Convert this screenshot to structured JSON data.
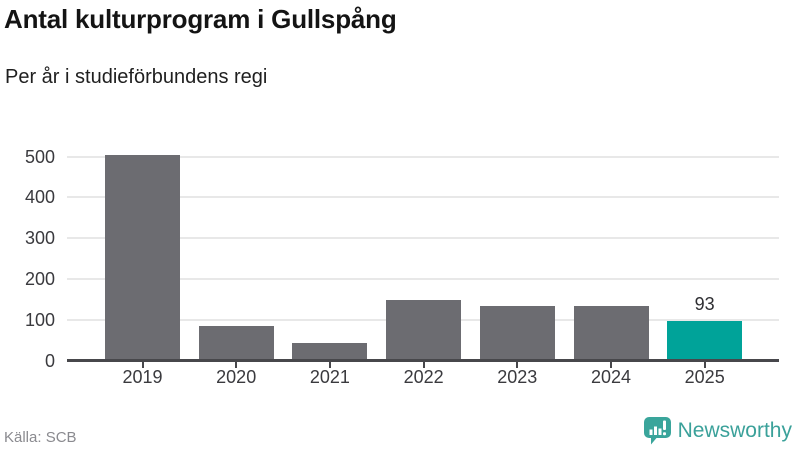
{
  "header": {
    "title": "Antal kulturprogram i Gullspång",
    "subtitle": "Per år i studieförbundens regi"
  },
  "chart_data": {
    "type": "bar",
    "title": "Antal kulturprogram i Gullspång",
    "subtitle": "Per år i studieförbundens regi",
    "categories": [
      "2019",
      "2020",
      "2021",
      "2022",
      "2023",
      "2024",
      "2025"
    ],
    "values": [
      500,
      80,
      39,
      144,
      130,
      130,
      93
    ],
    "value_labels": [
      null,
      null,
      null,
      null,
      null,
      null,
      "93"
    ],
    "highlight_index": 6,
    "xlabel": "",
    "ylabel": "",
    "ylim": [
      0,
      500
    ],
    "yticks": [
      0,
      100,
      200,
      300,
      400,
      500
    ],
    "grid": "horizontal",
    "legend": "none",
    "colors": {
      "bar": "#6c6c71",
      "highlight": "#00a399",
      "grid": "#e8e8e8",
      "axis": "#47474b",
      "tick_label": "#3a3a3e",
      "value_label": "#2e2e32"
    }
  },
  "footer": {
    "source": "Källa: SCB",
    "brand": "Newsworthy",
    "brand_color": "#3ba19a"
  }
}
